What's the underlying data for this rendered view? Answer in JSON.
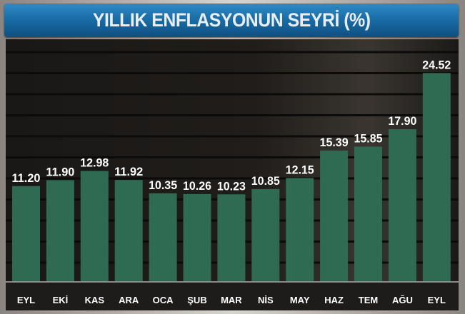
{
  "chart_data": {
    "type": "bar",
    "title": "YILLIK ENFLASYONUN SEYRİ (%)",
    "categories": [
      "EYL",
      "EKİ",
      "KAS",
      "ARA",
      "OCA",
      "ŞUB",
      "MAR",
      "NİS",
      "MAY",
      "HAZ",
      "TEM",
      "AĞU",
      "EYL"
    ],
    "values": [
      11.2,
      11.9,
      12.98,
      11.92,
      10.35,
      10.26,
      10.23,
      10.85,
      12.15,
      15.39,
      15.85,
      17.9,
      24.52
    ],
    "value_labels": [
      "11.20",
      "11.90",
      "12.98",
      "11.92",
      "10.35",
      "10.26",
      "10.23",
      "10.85",
      "12.15",
      "15.39",
      "15.85",
      "17.90",
      "24.52"
    ],
    "xlabel": "",
    "ylabel": "",
    "ylim": [
      0,
      26.7
    ],
    "grid": true,
    "legend": "none",
    "colors": {
      "bar": "#2e6b52",
      "background": "#1c1a18",
      "title_bar": "#1a6ea8",
      "label_text": "#ffffff"
    }
  }
}
